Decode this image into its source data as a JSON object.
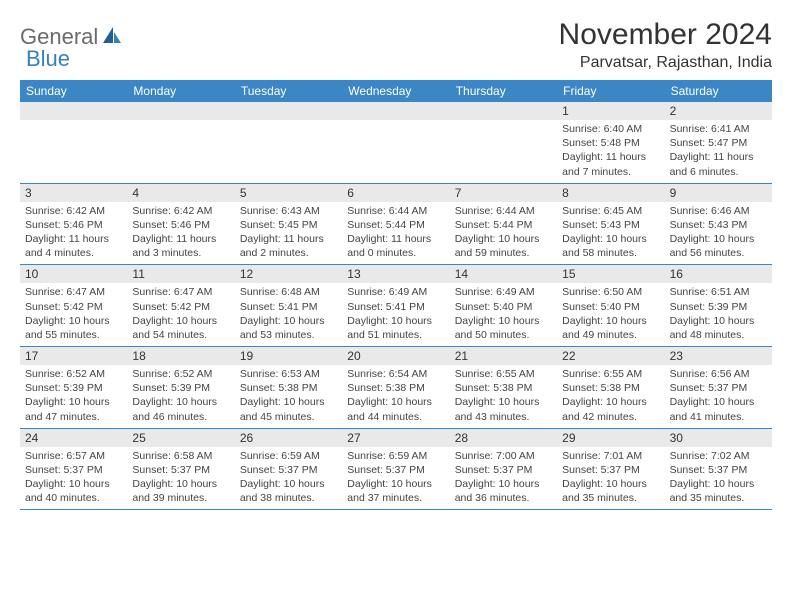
{
  "brand": {
    "word1": "General",
    "word2": "Blue"
  },
  "title": "November 2024",
  "location": "Parvatsar, Rajasthan, India",
  "colors": {
    "header_bg": "#3b86c4",
    "header_text": "#ffffff",
    "date_band_bg": "#e9e9e9",
    "row_divider": "#3b86c4",
    "logo_blue": "#3a7fbd",
    "logo_gray": "#6b6b6b"
  },
  "day_names": [
    "Sunday",
    "Monday",
    "Tuesday",
    "Wednesday",
    "Thursday",
    "Friday",
    "Saturday"
  ],
  "weeks": [
    [
      {
        "blank": true
      },
      {
        "blank": true
      },
      {
        "blank": true
      },
      {
        "blank": true
      },
      {
        "blank": true
      },
      {
        "date": "1",
        "sunrise": "Sunrise: 6:40 AM",
        "sunset": "Sunset: 5:48 PM",
        "daylight": "Daylight: 11 hours and 7 minutes."
      },
      {
        "date": "2",
        "sunrise": "Sunrise: 6:41 AM",
        "sunset": "Sunset: 5:47 PM",
        "daylight": "Daylight: 11 hours and 6 minutes."
      }
    ],
    [
      {
        "date": "3",
        "sunrise": "Sunrise: 6:42 AM",
        "sunset": "Sunset: 5:46 PM",
        "daylight": "Daylight: 11 hours and 4 minutes."
      },
      {
        "date": "4",
        "sunrise": "Sunrise: 6:42 AM",
        "sunset": "Sunset: 5:46 PM",
        "daylight": "Daylight: 11 hours and 3 minutes."
      },
      {
        "date": "5",
        "sunrise": "Sunrise: 6:43 AM",
        "sunset": "Sunset: 5:45 PM",
        "daylight": "Daylight: 11 hours and 2 minutes."
      },
      {
        "date": "6",
        "sunrise": "Sunrise: 6:44 AM",
        "sunset": "Sunset: 5:44 PM",
        "daylight": "Daylight: 11 hours and 0 minutes."
      },
      {
        "date": "7",
        "sunrise": "Sunrise: 6:44 AM",
        "sunset": "Sunset: 5:44 PM",
        "daylight": "Daylight: 10 hours and 59 minutes."
      },
      {
        "date": "8",
        "sunrise": "Sunrise: 6:45 AM",
        "sunset": "Sunset: 5:43 PM",
        "daylight": "Daylight: 10 hours and 58 minutes."
      },
      {
        "date": "9",
        "sunrise": "Sunrise: 6:46 AM",
        "sunset": "Sunset: 5:43 PM",
        "daylight": "Daylight: 10 hours and 56 minutes."
      }
    ],
    [
      {
        "date": "10",
        "sunrise": "Sunrise: 6:47 AM",
        "sunset": "Sunset: 5:42 PM",
        "daylight": "Daylight: 10 hours and 55 minutes."
      },
      {
        "date": "11",
        "sunrise": "Sunrise: 6:47 AM",
        "sunset": "Sunset: 5:42 PM",
        "daylight": "Daylight: 10 hours and 54 minutes."
      },
      {
        "date": "12",
        "sunrise": "Sunrise: 6:48 AM",
        "sunset": "Sunset: 5:41 PM",
        "daylight": "Daylight: 10 hours and 53 minutes."
      },
      {
        "date": "13",
        "sunrise": "Sunrise: 6:49 AM",
        "sunset": "Sunset: 5:41 PM",
        "daylight": "Daylight: 10 hours and 51 minutes."
      },
      {
        "date": "14",
        "sunrise": "Sunrise: 6:49 AM",
        "sunset": "Sunset: 5:40 PM",
        "daylight": "Daylight: 10 hours and 50 minutes."
      },
      {
        "date": "15",
        "sunrise": "Sunrise: 6:50 AM",
        "sunset": "Sunset: 5:40 PM",
        "daylight": "Daylight: 10 hours and 49 minutes."
      },
      {
        "date": "16",
        "sunrise": "Sunrise: 6:51 AM",
        "sunset": "Sunset: 5:39 PM",
        "daylight": "Daylight: 10 hours and 48 minutes."
      }
    ],
    [
      {
        "date": "17",
        "sunrise": "Sunrise: 6:52 AM",
        "sunset": "Sunset: 5:39 PM",
        "daylight": "Daylight: 10 hours and 47 minutes."
      },
      {
        "date": "18",
        "sunrise": "Sunrise: 6:52 AM",
        "sunset": "Sunset: 5:39 PM",
        "daylight": "Daylight: 10 hours and 46 minutes."
      },
      {
        "date": "19",
        "sunrise": "Sunrise: 6:53 AM",
        "sunset": "Sunset: 5:38 PM",
        "daylight": "Daylight: 10 hours and 45 minutes."
      },
      {
        "date": "20",
        "sunrise": "Sunrise: 6:54 AM",
        "sunset": "Sunset: 5:38 PM",
        "daylight": "Daylight: 10 hours and 44 minutes."
      },
      {
        "date": "21",
        "sunrise": "Sunrise: 6:55 AM",
        "sunset": "Sunset: 5:38 PM",
        "daylight": "Daylight: 10 hours and 43 minutes."
      },
      {
        "date": "22",
        "sunrise": "Sunrise: 6:55 AM",
        "sunset": "Sunset: 5:38 PM",
        "daylight": "Daylight: 10 hours and 42 minutes."
      },
      {
        "date": "23",
        "sunrise": "Sunrise: 6:56 AM",
        "sunset": "Sunset: 5:37 PM",
        "daylight": "Daylight: 10 hours and 41 minutes."
      }
    ],
    [
      {
        "date": "24",
        "sunrise": "Sunrise: 6:57 AM",
        "sunset": "Sunset: 5:37 PM",
        "daylight": "Daylight: 10 hours and 40 minutes."
      },
      {
        "date": "25",
        "sunrise": "Sunrise: 6:58 AM",
        "sunset": "Sunset: 5:37 PM",
        "daylight": "Daylight: 10 hours and 39 minutes."
      },
      {
        "date": "26",
        "sunrise": "Sunrise: 6:59 AM",
        "sunset": "Sunset: 5:37 PM",
        "daylight": "Daylight: 10 hours and 38 minutes."
      },
      {
        "date": "27",
        "sunrise": "Sunrise: 6:59 AM",
        "sunset": "Sunset: 5:37 PM",
        "daylight": "Daylight: 10 hours and 37 minutes."
      },
      {
        "date": "28",
        "sunrise": "Sunrise: 7:00 AM",
        "sunset": "Sunset: 5:37 PM",
        "daylight": "Daylight: 10 hours and 36 minutes."
      },
      {
        "date": "29",
        "sunrise": "Sunrise: 7:01 AM",
        "sunset": "Sunset: 5:37 PM",
        "daylight": "Daylight: 10 hours and 35 minutes."
      },
      {
        "date": "30",
        "sunrise": "Sunrise: 7:02 AM",
        "sunset": "Sunset: 5:37 PM",
        "daylight": "Daylight: 10 hours and 35 minutes."
      }
    ]
  ]
}
